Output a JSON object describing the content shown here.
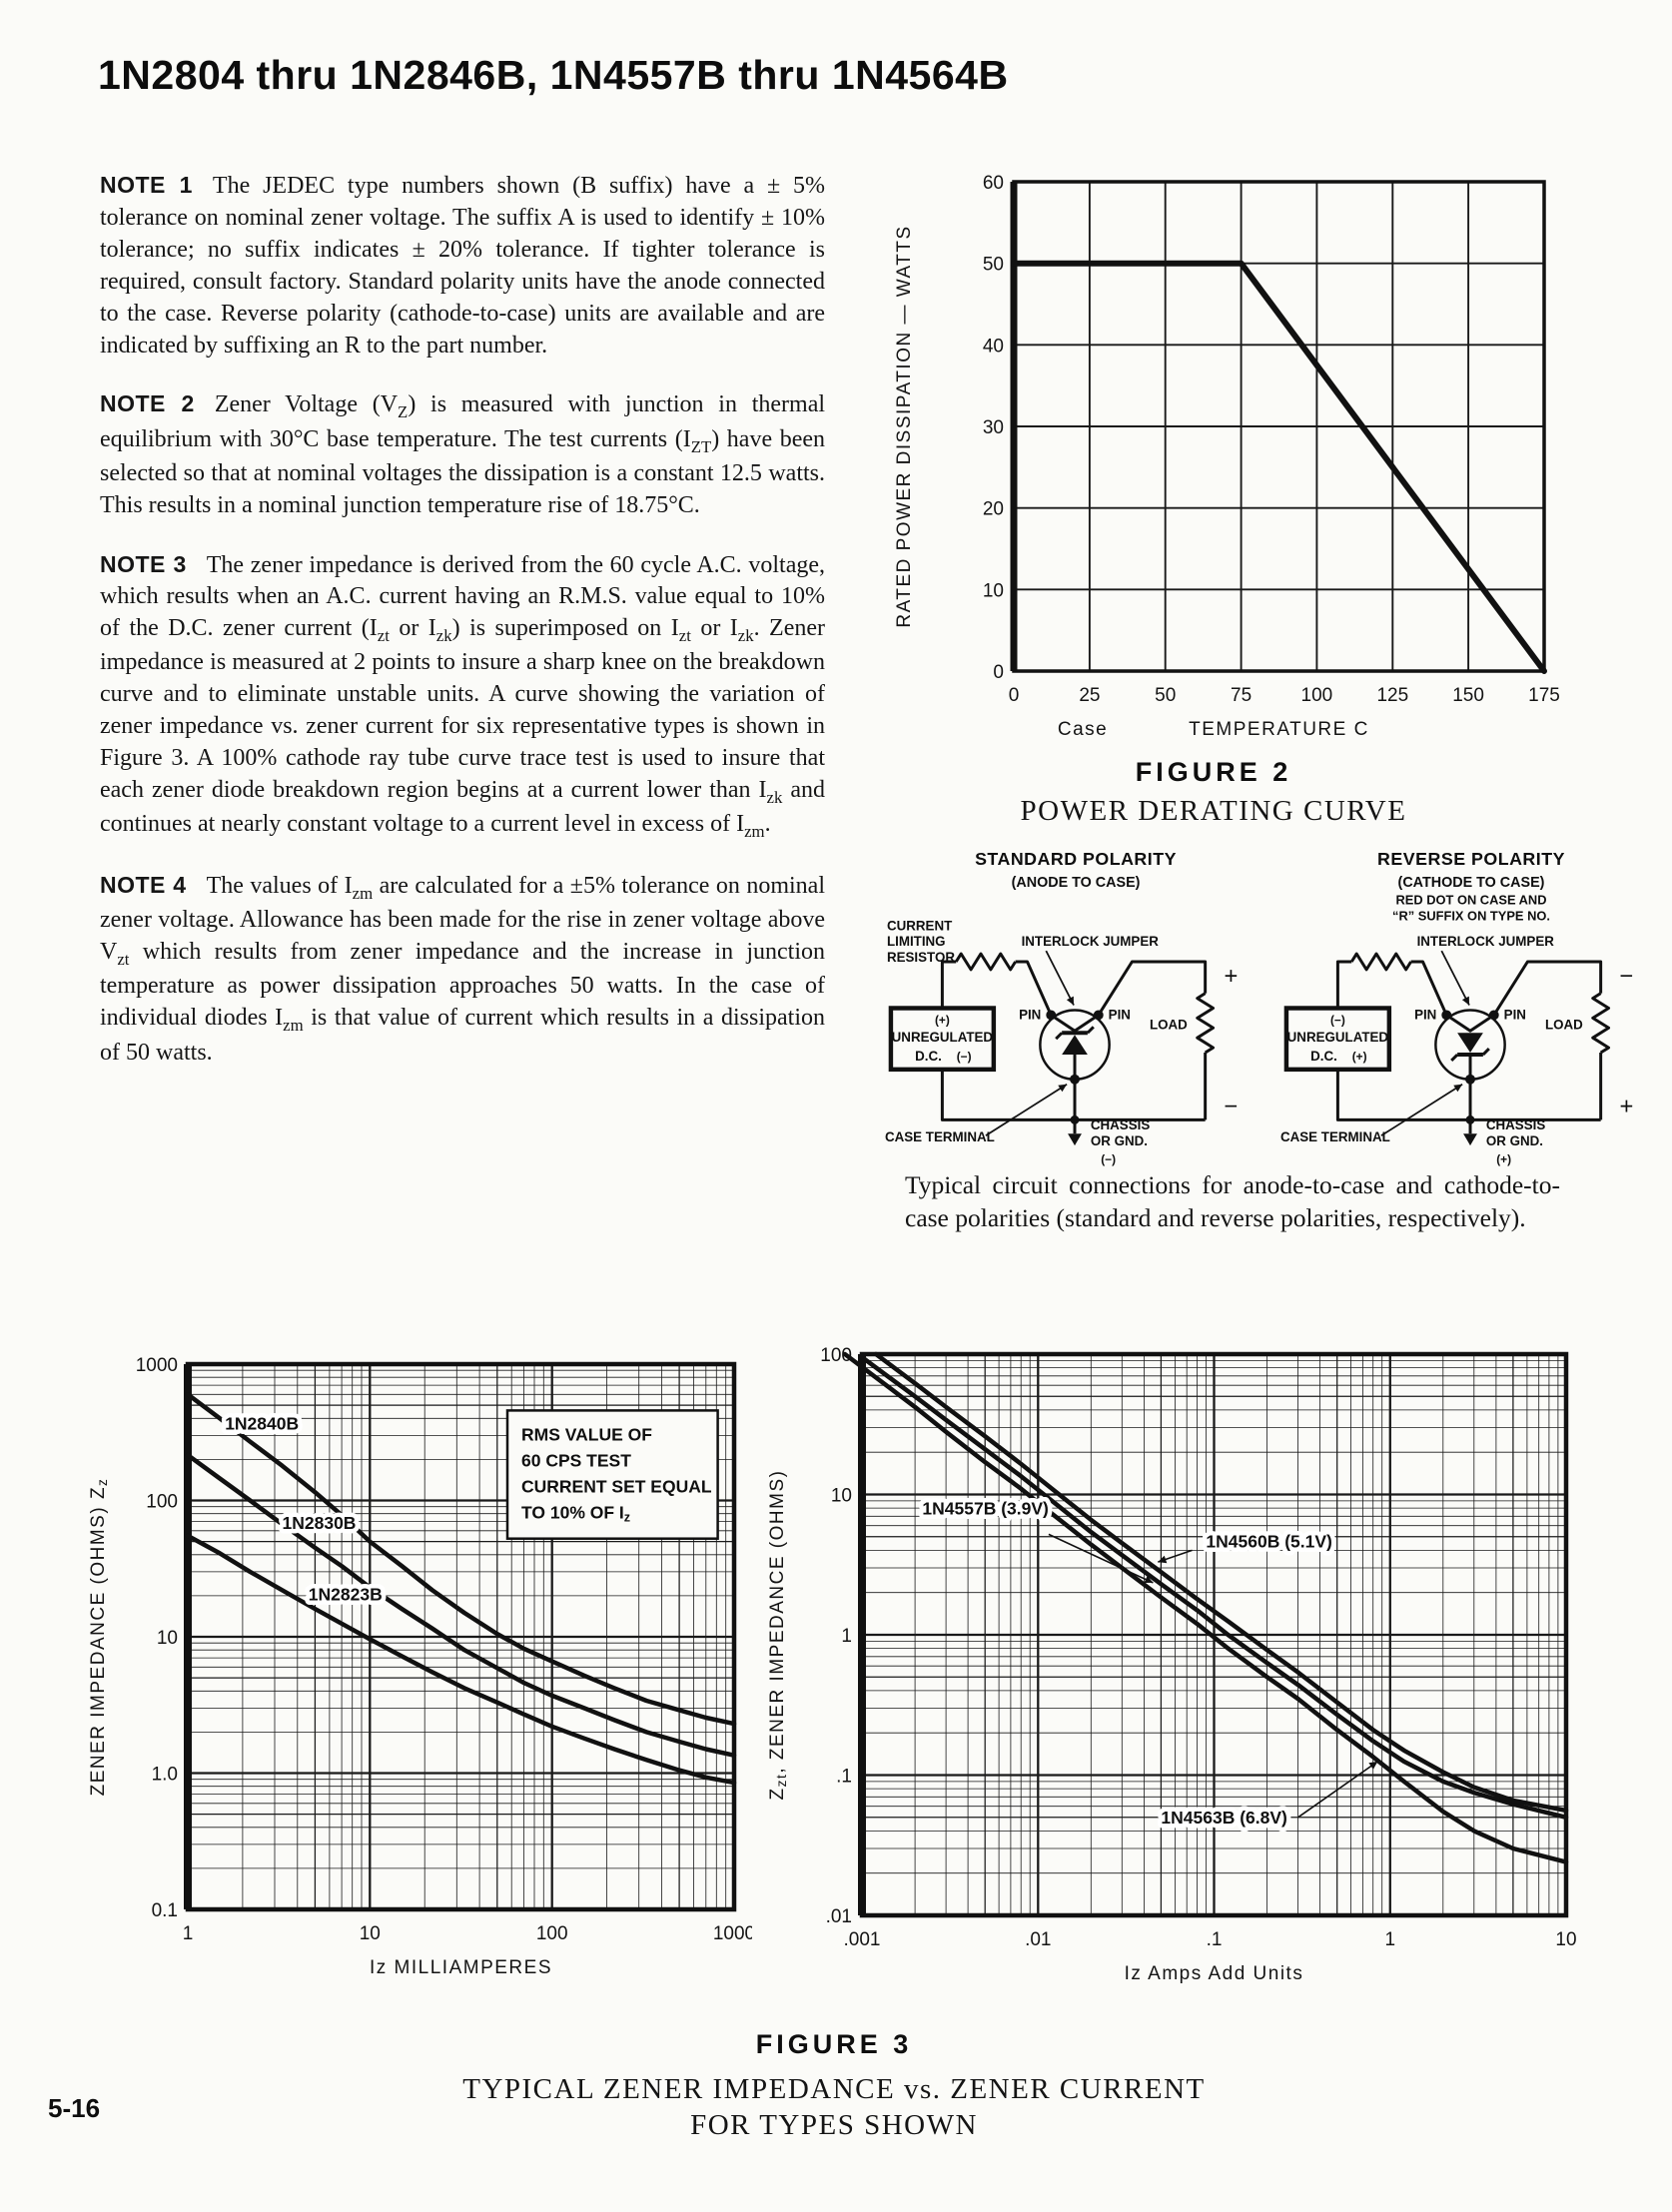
{
  "page": {
    "title": "1N2804 thru 1N2846B, 1N4557B thru 1N4564B",
    "page_number": "5-16"
  },
  "notes": [
    {
      "label": "NOTE 1",
      "text": "The JEDEC type numbers shown (B suffix) have a ± 5% tolerance on nominal zener voltage. The suffix A is used to identify ± 10% tolerance; no suffix indicates ± 20% tolerance. If tighter tolerance is required, consult factory. Standard polarity units have the anode connected to the case. Reverse polarity (cathode-to-case) units are available and are indicated by suffixing an R to the part number."
    },
    {
      "label": "NOTE 2",
      "text": "Zener Voltage (V_{Z}) is measured with junction in thermal equilibrium with 30°C base temperature. The test currents (I_{ZT}) have been selected so that at nominal voltages the dissipation is a constant 12.5 watts. This results in a nominal junction temperature rise of 18.75°C."
    },
    {
      "label": "NOTE 3",
      "text": "The zener impedance is derived from the 60 cycle A.C. voltage, which results when an A.C. current having an R.M.S. value equal to 10% of the D.C. zener current (I_{zt} or I_{zk}) is superimposed on I_{zt} or I_{zk}. Zener impedance is measured at 2 points to insure a sharp knee on the breakdown curve and to eliminate unstable units. A curve showing the variation of zener impedance vs. zener current for six representative types is shown in Figure 3. A 100% cathode ray tube curve trace test is used to insure that each zener diode breakdown region begins at a current lower than I_{zk} and continues at nearly constant voltage to a current level in excess of I_{zm}."
    },
    {
      "label": "NOTE 4",
      "text": "The values of I_{zm} are calculated for a ±5% tolerance on nominal zener voltage. Allowance has been made for the rise in zener voltage above V_{zt} which results from zener impedance and the increase in junction temperature as power dissipation approaches 50 watts. In the case of individual diodes I_{zm} is that value of current which results in a dissipation of 50 watts."
    }
  ],
  "figure2": {
    "figure_label": "FIGURE 2"
  },
  "figure3": {
    "figure_label": "FIGURE 3",
    "caption_line1": "TYPICAL ZENER IMPEDANCE vs. ZENER CURRENT",
    "caption_line2": "FOR TYPES SHOWN"
  },
  "circuits": {
    "caption": "Typical circuit connections for anode-to-case and cathode-to-case polarities (standard and reverse polarities, respectively).",
    "left": {
      "title_lines": [
        "STANDARD POLARITY",
        "(ANODE TO CASE)"
      ],
      "resistor_label_lines": [
        "CURRENT",
        "LIMITING",
        "RESISTOR"
      ],
      "interlock_label": "INTERLOCK JUMPER",
      "pin_left": "PIN",
      "pin_right": "PIN",
      "source_line1": "UNREGULATED",
      "source_line2": "D.C.",
      "source_sign_top": "(+)",
      "source_sign_bottom": "(−)",
      "load_label": "LOAD",
      "load_sign_top": "+",
      "load_sign_bottom": "−",
      "case_terminal_label": "CASE TERMINAL",
      "ground_line1": "CHASSIS",
      "ground_line2": "OR GND.",
      "ground_sign": "(−)",
      "diode_orientation": "cathode-up"
    },
    "right": {
      "title_lines": [
        "REVERSE POLARITY",
        "(CATHODE TO CASE)",
        "RED DOT ON CASE AND",
        "“R” SUFFIX ON TYPE NO."
      ],
      "interlock_label": "INTERLOCK JUMPER",
      "pin_left": "PIN",
      "pin_right": "PIN",
      "source_line1": "UNREGULATED",
      "source_line2": "D.C.",
      "source_sign_top": "(−)",
      "source_sign_bottom": "(+)",
      "load_label": "LOAD",
      "load_sign_top": "−",
      "load_sign_bottom": "+",
      "case_terminal_label": "CASE TERMINAL",
      "ground_line1": "CHASSIS",
      "ground_line2": "OR GND.",
      "ground_sign": "(+)",
      "diode_orientation": "cathode-down"
    }
  },
  "chart_data": [
    {
      "id": "power-derating-chart",
      "type": "line",
      "title": "POWER DERATING CURVE",
      "xlabel": "TEMPERATURE C",
      "x_prefix": "Case",
      "ylabel": "RATED POWER DISSIPATION — WATTS",
      "xscale": "linear",
      "yscale": "linear",
      "xlim": [
        0,
        175
      ],
      "ylim": [
        0,
        60
      ],
      "grid": true,
      "xticks": [
        [
          0,
          "0"
        ],
        [
          25,
          "25"
        ],
        [
          50,
          "50"
        ],
        [
          75,
          "75"
        ],
        [
          100,
          "100"
        ],
        [
          125,
          "125"
        ],
        [
          150,
          "150"
        ],
        [
          175,
          "175"
        ]
      ],
      "yticks": [
        [
          0,
          "0"
        ],
        [
          10,
          "10"
        ],
        [
          20,
          "20"
        ],
        [
          30,
          "30"
        ],
        [
          40,
          "40"
        ],
        [
          50,
          "50"
        ],
        [
          60,
          "60"
        ]
      ],
      "series": [
        {
          "name": "rated-power-dissipation",
          "points": [
            [
              0,
              50
            ],
            [
              75,
              50
            ],
            [
              175,
              0
            ]
          ]
        }
      ]
    },
    {
      "id": "zener-impedance-chart-left",
      "type": "line",
      "title": "",
      "xlabel": "Iz MILLIAMPERES",
      "ylabel": "ZENER IMPEDANCE (OHMS) Z_{z}",
      "xscale": "log",
      "yscale": "log",
      "xlim": [
        1,
        1000
      ],
      "ylim": [
        0.1,
        1000
      ],
      "grid": true,
      "xticks": [
        [
          1,
          "1"
        ],
        [
          10,
          "10"
        ],
        [
          100,
          "100"
        ],
        [
          1000,
          "1000"
        ]
      ],
      "yticks": [
        [
          1000,
          "1000"
        ],
        [
          100,
          "100"
        ],
        [
          10,
          "10"
        ],
        [
          1,
          "1.0"
        ],
        [
          0.1,
          "0.1"
        ]
      ],
      "annotation": {
        "lines": [
          "RMS VALUE OF",
          "60 CPS TEST",
          "CURRENT SET EQUAL",
          "TO 10% OF I_{z}"
        ],
        "fx": 0.585,
        "fy": 0.085,
        "fw": 0.385,
        "fh": 0.235
      },
      "series": [
        {
          "name": "1N2840B",
          "label_at": [
            1.6,
            330
          ],
          "points": [
            [
              1,
              600
            ],
            [
              1.5,
              400
            ],
            [
              2.2,
              270
            ],
            [
              3.3,
              180
            ],
            [
              5,
              115
            ],
            [
              7,
              78
            ],
            [
              10,
              50
            ],
            [
              15,
              33
            ],
            [
              22,
              22
            ],
            [
              33,
              15
            ],
            [
              50,
              10.5
            ],
            [
              70,
              8.2
            ],
            [
              100,
              6.6
            ],
            [
              150,
              5.2
            ],
            [
              220,
              4.2
            ],
            [
              330,
              3.4
            ],
            [
              500,
              2.9
            ],
            [
              700,
              2.55
            ],
            [
              1000,
              2.3
            ]
          ]
        },
        {
          "name": "1N2830B",
          "label_at": [
            3.3,
            62
          ],
          "points": [
            [
              1,
              215
            ],
            [
              1.5,
              145
            ],
            [
              2.2,
              100
            ],
            [
              3.3,
              67
            ],
            [
              5,
              45
            ],
            [
              7,
              33
            ],
            [
              10,
              23
            ],
            [
              15,
              16
            ],
            [
              22,
              11.5
            ],
            [
              33,
              8
            ],
            [
              50,
              5.9
            ],
            [
              70,
              4.6
            ],
            [
              100,
              3.7
            ],
            [
              150,
              3.0
            ],
            [
              220,
              2.45
            ],
            [
              330,
              2.0
            ],
            [
              500,
              1.7
            ],
            [
              700,
              1.5
            ],
            [
              1000,
              1.35
            ]
          ]
        },
        {
          "name": "1N2823B",
          "label_at": [
            4.6,
            18.5
          ],
          "points": [
            [
              1,
              55
            ],
            [
              1.5,
              41
            ],
            [
              2.2,
              30
            ],
            [
              3.3,
              22
            ],
            [
              5,
              16
            ],
            [
              7,
              12.5
            ],
            [
              10,
              9.6
            ],
            [
              15,
              7.2
            ],
            [
              22,
              5.5
            ],
            [
              33,
              4.2
            ],
            [
              50,
              3.3
            ],
            [
              70,
              2.7
            ],
            [
              100,
              2.2
            ],
            [
              150,
              1.8
            ],
            [
              220,
              1.5
            ],
            [
              330,
              1.25
            ],
            [
              500,
              1.05
            ],
            [
              700,
              0.93
            ],
            [
              1000,
              0.85
            ]
          ]
        }
      ]
    },
    {
      "id": "zener-impedance-chart-right",
      "type": "line",
      "title": "",
      "xlabel": "Iz Amps Add Units",
      "ylabel": "Z_{zt}, ZENER IMPEDANCE (OHMS)",
      "xscale": "log",
      "yscale": "log",
      "xlim": [
        0.001,
        10
      ],
      "ylim": [
        0.01,
        100
      ],
      "grid": true,
      "xticks": [
        [
          0.001,
          ".001"
        ],
        [
          0.01,
          ".01"
        ],
        [
          0.1,
          ".1"
        ],
        [
          1,
          "1"
        ],
        [
          10,
          "10"
        ]
      ],
      "yticks": [
        [
          100,
          "100"
        ],
        [
          10,
          "10"
        ],
        [
          1,
          "1"
        ],
        [
          0.1,
          ".1"
        ],
        [
          0.01,
          ".01"
        ]
      ],
      "series": [
        {
          "name": "1N4557B (3.9V)",
          "label_at": [
            0.0022,
            7.2
          ],
          "leader_from": [
            0.0115,
            5.2
          ],
          "leader_to": [
            0.045,
            2.35
          ],
          "points": [
            [
              0.001,
              95
            ],
            [
              0.002,
              50
            ],
            [
              0.003,
              34
            ],
            [
              0.005,
              21
            ],
            [
              0.008,
              13.5
            ],
            [
              0.012,
              9
            ],
            [
              0.02,
              5.4
            ],
            [
              0.03,
              3.7
            ],
            [
              0.05,
              2.3
            ],
            [
              0.08,
              1.5
            ],
            [
              0.12,
              1.0
            ],
            [
              0.2,
              0.63
            ],
            [
              0.3,
              0.44
            ],
            [
              0.5,
              0.27
            ],
            [
              0.8,
              0.175
            ],
            [
              1.2,
              0.125
            ],
            [
              2,
              0.09
            ],
            [
              3,
              0.075
            ],
            [
              5,
              0.062
            ],
            [
              10,
              0.05
            ]
          ]
        },
        {
          "name": "1N4560B (5.1V)",
          "label_at": [
            0.09,
            4.2
          ],
          "leader_from": [
            0.075,
            4.0
          ],
          "leader_to": [
            0.048,
            3.3
          ],
          "points": [
            [
              0.0012,
              100
            ],
            [
              0.002,
              62
            ],
            [
              0.003,
              42
            ],
            [
              0.005,
              26
            ],
            [
              0.008,
              16.5
            ],
            [
              0.012,
              11
            ],
            [
              0.02,
              6.6
            ],
            [
              0.03,
              4.5
            ],
            [
              0.05,
              2.8
            ],
            [
              0.08,
              1.8
            ],
            [
              0.12,
              1.25
            ],
            [
              0.2,
              0.78
            ],
            [
              0.3,
              0.54
            ],
            [
              0.5,
              0.33
            ],
            [
              0.8,
              0.21
            ],
            [
              1.2,
              0.15
            ],
            [
              2,
              0.105
            ],
            [
              3,
              0.082
            ],
            [
              5,
              0.066
            ],
            [
              10,
              0.056
            ]
          ]
        },
        {
          "name": "1N4563B (6.8V)",
          "label_at": [
            0.05,
            0.045
          ],
          "leader_from": [
            0.3,
            0.05
          ],
          "leader_to": [
            0.85,
            0.125
          ],
          "points": [
            [
              0.0008,
              100
            ],
            [
              0.002,
              42
            ],
            [
              0.003,
              28
            ],
            [
              0.005,
              17
            ],
            [
              0.008,
              11
            ],
            [
              0.012,
              7.3
            ],
            [
              0.02,
              4.4
            ],
            [
              0.03,
              3.0
            ],
            [
              0.05,
              1.85
            ],
            [
              0.08,
              1.2
            ],
            [
              0.12,
              0.8
            ],
            [
              0.2,
              0.5
            ],
            [
              0.3,
              0.35
            ],
            [
              0.5,
              0.21
            ],
            [
              0.8,
              0.135
            ],
            [
              1.2,
              0.09
            ],
            [
              2,
              0.055
            ],
            [
              3,
              0.04
            ],
            [
              5,
              0.03
            ],
            [
              10,
              0.024
            ]
          ]
        }
      ]
    }
  ]
}
